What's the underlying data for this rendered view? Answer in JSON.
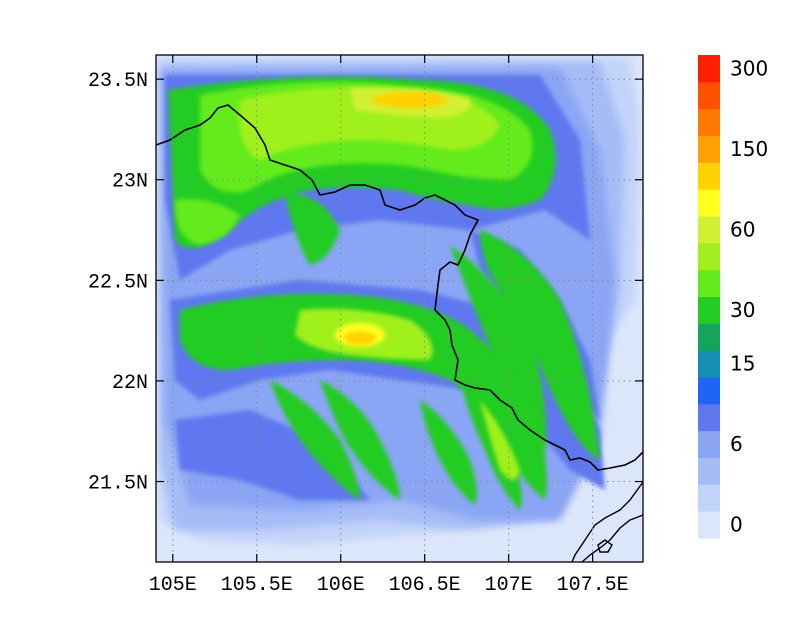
{
  "map": {
    "lon_range": [
      104.9,
      107.8
    ],
    "lat_range": [
      21.1,
      23.62
    ],
    "lon_ticks": [
      {
        "value": 105.0,
        "label": "105E"
      },
      {
        "value": 105.5,
        "label": "105.5E"
      },
      {
        "value": 106.0,
        "label": "106E"
      },
      {
        "value": 106.5,
        "label": "106.5E"
      },
      {
        "value": 107.0,
        "label": "107E"
      },
      {
        "value": 107.5,
        "label": "107.5E"
      }
    ],
    "lat_ticks": [
      {
        "value": 21.5,
        "label": "21.5N"
      },
      {
        "value": 22.0,
        "label": "22N"
      },
      {
        "value": 22.5,
        "label": "22.5N"
      },
      {
        "value": 23.0,
        "label": "23N"
      },
      {
        "value": 23.5,
        "label": "23.5N"
      }
    ],
    "grid": "dotted"
  },
  "colorbar": {
    "colors": [
      "#dce6fb",
      "#c3d4fa",
      "#a5bcf7",
      "#8aa5f4",
      "#5f78ef",
      "#1e64f5",
      "#1490b4",
      "#14a55a",
      "#23cc23",
      "#64eb1e",
      "#a0f01e",
      "#d2f032",
      "#ffff1e",
      "#ffd200",
      "#ffa000",
      "#ff7800",
      "#ff5000",
      "#ff1e00"
    ],
    "labels": [
      {
        "text": "0",
        "index": 0
      },
      {
        "text": "6",
        "index": 3
      },
      {
        "text": "15",
        "index": 6
      },
      {
        "text": "30",
        "index": 8
      },
      {
        "text": "60",
        "index": 11
      },
      {
        "text": "150",
        "index": 14
      },
      {
        "text": "300",
        "index": 17
      }
    ]
  }
}
